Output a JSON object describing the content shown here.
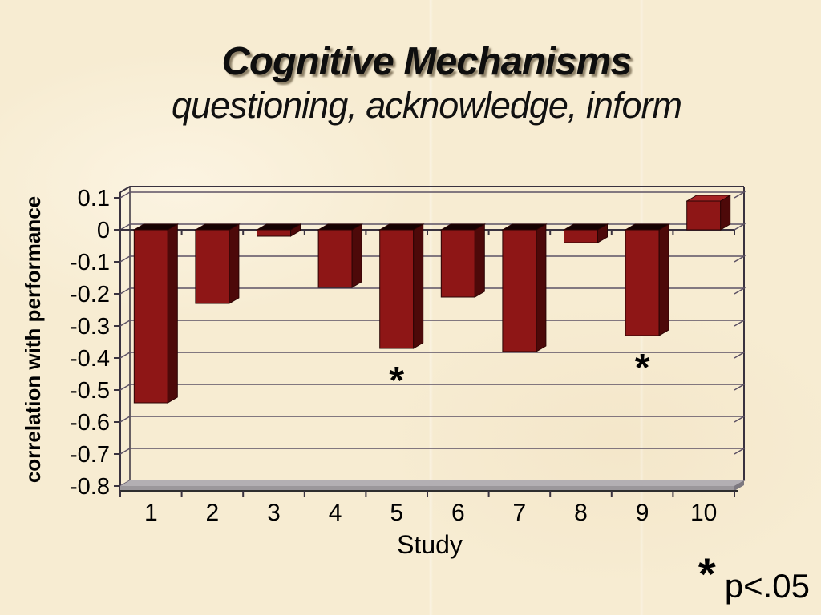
{
  "slide": {
    "title": "Cognitive Mechanisms",
    "subtitle": "questioning, acknowledge, inform",
    "footnote": {
      "marker": "*",
      "text": "p<.05"
    }
  },
  "chart_data": {
    "type": "bar",
    "style": "3d-column",
    "title": "",
    "xlabel": "Study",
    "ylabel": "correlation with performance",
    "categories": [
      "1",
      "2",
      "3",
      "4",
      "5",
      "6",
      "7",
      "8",
      "9",
      "10"
    ],
    "values": [
      -0.54,
      -0.23,
      -0.02,
      -0.18,
      -0.37,
      -0.21,
      -0.38,
      -0.04,
      -0.33,
      0.09
    ],
    "ylim": [
      -0.8,
      0.1
    ],
    "yticks": [
      0.1,
      0,
      -0.1,
      -0.2,
      -0.3,
      -0.4,
      -0.5,
      -0.6,
      -0.7,
      -0.8
    ],
    "ytick_labels": [
      "0.1",
      "0",
      "-0.1",
      "-0.2",
      "-0.3",
      "-0.4",
      "-0.5",
      "-0.6",
      "-0.7",
      "-0.8"
    ],
    "grid": true,
    "legend": "none",
    "annotations": [
      {
        "category": "5",
        "marker": "*",
        "meaning": "p<.05"
      },
      {
        "category": "9",
        "marker": "*",
        "meaning": "p<.05"
      }
    ]
  },
  "colors": {
    "background": "#f7ecd2",
    "bar_front": "#8e1616",
    "bar_side": "#4d0909",
    "bar_top_negative": "#150202",
    "bar_top_positive": "#a62323",
    "bar_outline": "#2a0404",
    "gridline": "#5c5164",
    "frame": "#39323f",
    "floor_top": "#b3afb3",
    "floor_front": "#9b979b",
    "floor_side": "#7d7980",
    "floor_edge": "#2e2e2e",
    "text": "#000000"
  }
}
